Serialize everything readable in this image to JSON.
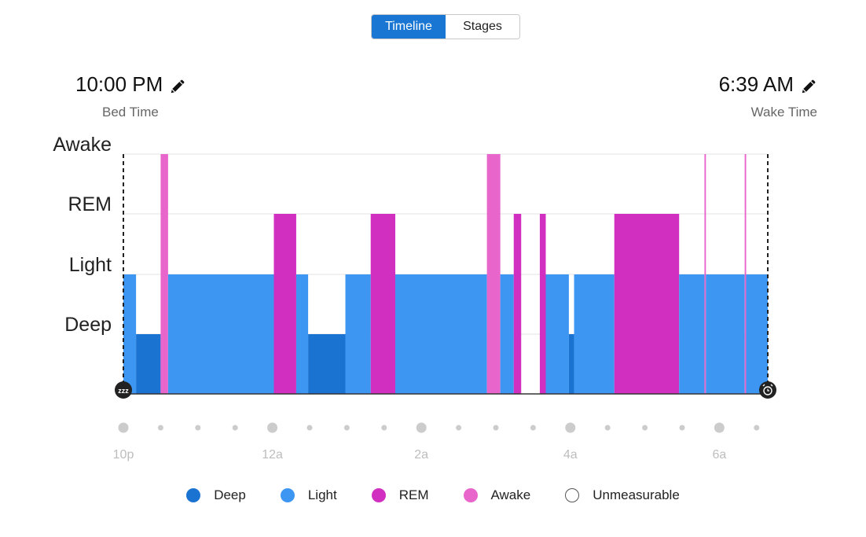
{
  "toggle": {
    "timeline_label": "Timeline",
    "stages_label": "Stages",
    "selected": "Timeline"
  },
  "bed": {
    "time": "10:00 PM",
    "label": "Bed Time"
  },
  "wake": {
    "time": "6:39 AM",
    "label": "Wake Time"
  },
  "colors": {
    "deep": "#1a73d1",
    "light": "#3d97f2",
    "rem": "#d02fc0",
    "awake": "#e866cc",
    "grid": "#e3e3e3",
    "tick": "#cccccc",
    "tick_label": "#bdbdbd"
  },
  "legend": [
    {
      "key": "deep",
      "label": "Deep",
      "color": "#1a73d1"
    },
    {
      "key": "light",
      "label": "Light",
      "color": "#3d97f2"
    },
    {
      "key": "rem",
      "label": "REM",
      "color": "#d02fc0"
    },
    {
      "key": "awake",
      "label": "Awake",
      "color": "#e866cc"
    },
    {
      "key": "unmeasurable",
      "label": "Unmeasurable",
      "color": "#ffffff"
    }
  ],
  "chart_data": {
    "type": "area",
    "title": "",
    "x_unit": "hours after 10p",
    "x_range": [
      0,
      8.65
    ],
    "y_levels": [
      "Deep",
      "Light",
      "REM",
      "Awake"
    ],
    "x_tick_labels": [
      {
        "x": 0,
        "label": "10p"
      },
      {
        "x": 2,
        "label": "12a"
      },
      {
        "x": 4,
        "label": "2a"
      },
      {
        "x": 6,
        "label": "4a"
      },
      {
        "x": 8,
        "label": "6a"
      }
    ],
    "minor_ticks": [
      0.5,
      1,
      1.5,
      2.5,
      3,
      3.5,
      4.5,
      5,
      5.5,
      6.5,
      7,
      7.5,
      8.5
    ],
    "segments": [
      {
        "start": 0.0,
        "end": 0.17,
        "stage": "light"
      },
      {
        "start": 0.17,
        "end": 0.5,
        "stage": "deep"
      },
      {
        "start": 0.5,
        "end": 0.6,
        "stage": "awake"
      },
      {
        "start": 0.6,
        "end": 2.02,
        "stage": "light"
      },
      {
        "start": 2.02,
        "end": 2.32,
        "stage": "rem"
      },
      {
        "start": 2.32,
        "end": 2.48,
        "stage": "light"
      },
      {
        "start": 2.48,
        "end": 2.98,
        "stage": "deep"
      },
      {
        "start": 2.98,
        "end": 3.32,
        "stage": "light"
      },
      {
        "start": 3.32,
        "end": 3.65,
        "stage": "rem"
      },
      {
        "start": 3.65,
        "end": 4.88,
        "stage": "light"
      },
      {
        "start": 4.88,
        "end": 5.06,
        "stage": "awake"
      },
      {
        "start": 5.06,
        "end": 5.24,
        "stage": "light"
      },
      {
        "start": 5.24,
        "end": 5.34,
        "stage": "rem"
      },
      {
        "start": 5.34,
        "end": 5.59,
        "stage": "unmeasurable"
      },
      {
        "start": 5.59,
        "end": 5.67,
        "stage": "rem"
      },
      {
        "start": 5.67,
        "end": 5.98,
        "stage": "light"
      },
      {
        "start": 5.98,
        "end": 6.05,
        "stage": "deep"
      },
      {
        "start": 6.05,
        "end": 6.59,
        "stage": "light"
      },
      {
        "start": 6.59,
        "end": 7.46,
        "stage": "rem"
      },
      {
        "start": 7.46,
        "end": 7.8,
        "stage": "light"
      },
      {
        "start": 7.8,
        "end": 7.82,
        "stage": "awake"
      },
      {
        "start": 7.82,
        "end": 8.34,
        "stage": "light"
      },
      {
        "start": 8.34,
        "end": 8.36,
        "stage": "awake"
      },
      {
        "start": 8.36,
        "end": 8.65,
        "stage": "light"
      }
    ]
  }
}
